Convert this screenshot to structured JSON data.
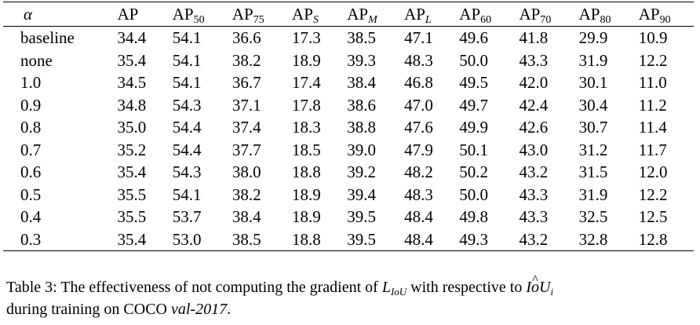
{
  "table": {
    "header": {
      "alpha": "α",
      "columns": [
        {
          "base": "AP",
          "sub": "",
          "sub_italic": false
        },
        {
          "base": "AP",
          "sub": "50",
          "sub_italic": false
        },
        {
          "base": "AP",
          "sub": "75",
          "sub_italic": false
        },
        {
          "base": "AP",
          "sub": "S",
          "sub_italic": true
        },
        {
          "base": "AP",
          "sub": "M",
          "sub_italic": true
        },
        {
          "base": "AP",
          "sub": "L",
          "sub_italic": true
        },
        {
          "base": "AP",
          "sub": "60",
          "sub_italic": false
        },
        {
          "base": "AP",
          "sub": "70",
          "sub_italic": false
        },
        {
          "base": "AP",
          "sub": "80",
          "sub_italic": false
        },
        {
          "base": "AP",
          "sub": "90",
          "sub_italic": false
        }
      ]
    },
    "rows": [
      {
        "label": "baseline",
        "values": [
          "34.4",
          "54.1",
          "36.6",
          "17.3",
          "38.5",
          "47.1",
          "49.6",
          "41.8",
          "29.9",
          "10.9"
        ]
      },
      {
        "label": "none",
        "values": [
          "35.4",
          "54.1",
          "38.2",
          "18.9",
          "39.3",
          "48.3",
          "50.0",
          "43.3",
          "31.9",
          "12.2"
        ]
      },
      {
        "label": "1.0",
        "values": [
          "34.5",
          "54.1",
          "36.7",
          "17.4",
          "38.4",
          "46.8",
          "49.5",
          "42.0",
          "30.1",
          "11.0"
        ]
      },
      {
        "label": "0.9",
        "values": [
          "34.8",
          "54.3",
          "37.1",
          "17.8",
          "38.6",
          "47.0",
          "49.7",
          "42.4",
          "30.4",
          "11.2"
        ]
      },
      {
        "label": "0.8",
        "values": [
          "35.0",
          "54.4",
          "37.4",
          "18.3",
          "38.8",
          "47.6",
          "49.9",
          "42.6",
          "30.7",
          "11.4"
        ]
      },
      {
        "label": "0.7",
        "values": [
          "35.2",
          "54.4",
          "37.7",
          "18.5",
          "39.0",
          "47.9",
          "50.1",
          "43.0",
          "31.2",
          "11.7"
        ]
      },
      {
        "label": "0.6",
        "values": [
          "35.4",
          "54.3",
          "38.0",
          "18.8",
          "39.2",
          "48.2",
          "50.2",
          "43.2",
          "31.5",
          "12.0"
        ]
      },
      {
        "label": "0.5",
        "values": [
          "35.5",
          "54.1",
          "38.2",
          "18.9",
          "39.4",
          "48.3",
          "50.0",
          "43.3",
          "31.9",
          "12.2"
        ]
      },
      {
        "label": "0.4",
        "values": [
          "35.5",
          "53.7",
          "38.4",
          "18.9",
          "39.5",
          "48.4",
          "49.8",
          "43.3",
          "32.5",
          "12.5"
        ]
      },
      {
        "label": "0.3",
        "values": [
          "35.4",
          "53.0",
          "38.5",
          "18.8",
          "39.5",
          "48.4",
          "49.3",
          "43.2",
          "32.8",
          "12.8"
        ]
      }
    ]
  },
  "caption": {
    "prefix": "Table 3: The effectiveness of not computing the gradient of ",
    "math_L": "L",
    "math_L_sub": "IoU",
    "middle": " with respective to ",
    "math_IoU_I": "I",
    "math_IoU_o": "o",
    "math_IoU_U": "U",
    "math_IoU_sub": "i",
    "line2_prefix": "during training on COCO ",
    "dataset": "val-2017",
    "suffix": "."
  }
}
